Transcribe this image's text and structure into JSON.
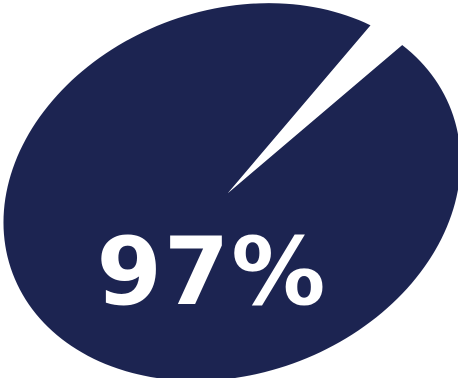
{
  "chart_data": {
    "type": "pie",
    "slices": [
      {
        "value": 97,
        "color": "#1c2451"
      },
      {
        "value": 3,
        "color": "#ffffff"
      }
    ],
    "data_label": "97%",
    "label_color": "#ffffff"
  }
}
